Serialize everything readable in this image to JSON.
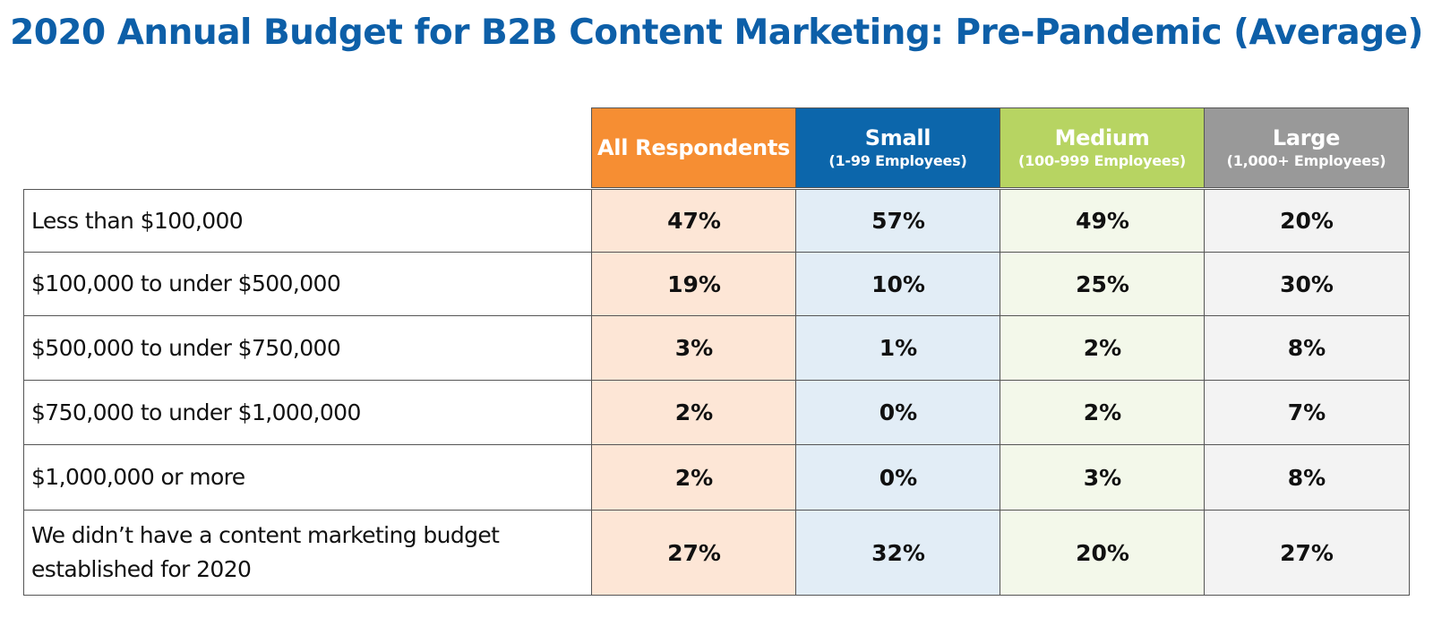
{
  "chart_data": {
    "type": "table",
    "title": "2020 Annual Budget for B2B Content Marketing: Pre-Pandemic (Average)",
    "columns": [
      {
        "name": "All Respondents",
        "sub": "",
        "color": "#f68e33"
      },
      {
        "name": "Small",
        "sub": "(1-99 Employees)",
        "color": "#0c66ab"
      },
      {
        "name": "Medium",
        "sub": "(100-999 Employees)",
        "color": "#b7d462"
      },
      {
        "name": "Large",
        "sub": "(1,000+ Employees)",
        "color": "#999999"
      }
    ],
    "rows": [
      {
        "label": "Less than $100,000",
        "values": [
          "47%",
          "57%",
          "49%",
          "20%"
        ]
      },
      {
        "label": "$100,000 to under $500,000",
        "values": [
          "19%",
          "10%",
          "25%",
          "30%"
        ]
      },
      {
        "label": "$500,000 to under $750,000",
        "values": [
          "3%",
          "1%",
          "2%",
          "8%"
        ]
      },
      {
        "label": "$750,000 to under $1,000,000",
        "values": [
          "2%",
          "0%",
          "2%",
          "7%"
        ]
      },
      {
        "label": "$1,000,000 or more",
        "values": [
          "2%",
          "0%",
          "3%",
          "8%"
        ]
      },
      {
        "label": "We didn’t have a content marketing budget established for 2020",
        "values": [
          "27%",
          "32%",
          "20%",
          "27%"
        ]
      }
    ]
  }
}
